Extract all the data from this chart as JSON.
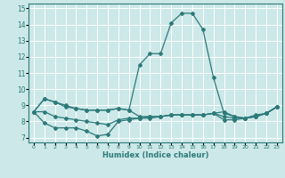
{
  "xlabel": "Humidex (Indice chaleur)",
  "ylabel": "",
  "bg_color": "#cce8e8",
  "grid_color": "#ffffff",
  "line_color": "#2d7a7a",
  "xlim": [
    -0.5,
    23.5
  ],
  "ylim": [
    6.7,
    15.3
  ],
  "xticks": [
    0,
    1,
    2,
    3,
    4,
    5,
    6,
    7,
    8,
    9,
    10,
    11,
    12,
    13,
    14,
    15,
    16,
    17,
    18,
    19,
    20,
    21,
    22,
    23
  ],
  "yticks": [
    7,
    8,
    9,
    10,
    11,
    12,
    13,
    14,
    15
  ],
  "series": {
    "main": {
      "x": [
        0,
        1,
        2,
        3,
        4,
        5,
        6,
        7,
        8,
        9,
        10,
        11,
        12,
        13,
        14,
        15,
        16,
        17,
        18,
        19,
        20,
        21,
        22,
        23
      ],
      "y": [
        8.6,
        9.4,
        9.2,
        8.9,
        8.8,
        8.7,
        8.7,
        8.7,
        8.8,
        8.7,
        11.5,
        12.2,
        12.2,
        14.1,
        14.7,
        14.7,
        13.7,
        10.7,
        8.5,
        8.3,
        8.2,
        8.3,
        8.5,
        8.9
      ]
    },
    "low": {
      "x": [
        0,
        1,
        2,
        3,
        4,
        5,
        6,
        7,
        8,
        9,
        10,
        11,
        12,
        13,
        14,
        15,
        16,
        17,
        18,
        19,
        20,
        21,
        22,
        23
      ],
      "y": [
        8.6,
        7.9,
        7.6,
        7.6,
        7.6,
        7.4,
        7.1,
        7.2,
        8.0,
        8.1,
        8.2,
        8.2,
        8.3,
        8.4,
        8.4,
        8.4,
        8.4,
        8.5,
        8.1,
        8.1,
        8.2,
        8.4,
        8.5,
        8.9
      ]
    },
    "high": {
      "x": [
        0,
        1,
        2,
        3,
        4,
        5,
        6,
        7,
        8,
        9,
        10,
        11,
        12,
        13,
        14,
        15,
        16,
        17,
        18,
        19,
        20,
        21,
        22,
        23
      ],
      "y": [
        8.6,
        9.4,
        9.2,
        9.0,
        8.8,
        8.7,
        8.7,
        8.7,
        8.8,
        8.7,
        8.3,
        8.3,
        8.3,
        8.4,
        8.4,
        8.4,
        8.4,
        8.5,
        8.6,
        8.3,
        8.2,
        8.3,
        8.5,
        8.9
      ]
    },
    "mid": {
      "x": [
        0,
        1,
        2,
        3,
        4,
        5,
        6,
        7,
        8,
        9,
        10,
        11,
        12,
        13,
        14,
        15,
        16,
        17,
        18,
        19,
        20,
        21,
        22,
        23
      ],
      "y": [
        8.6,
        8.6,
        8.3,
        8.2,
        8.1,
        8.0,
        7.9,
        7.8,
        8.1,
        8.2,
        8.2,
        8.3,
        8.3,
        8.4,
        8.4,
        8.4,
        8.4,
        8.5,
        8.3,
        8.2,
        8.2,
        8.3,
        8.5,
        8.9
      ]
    }
  }
}
